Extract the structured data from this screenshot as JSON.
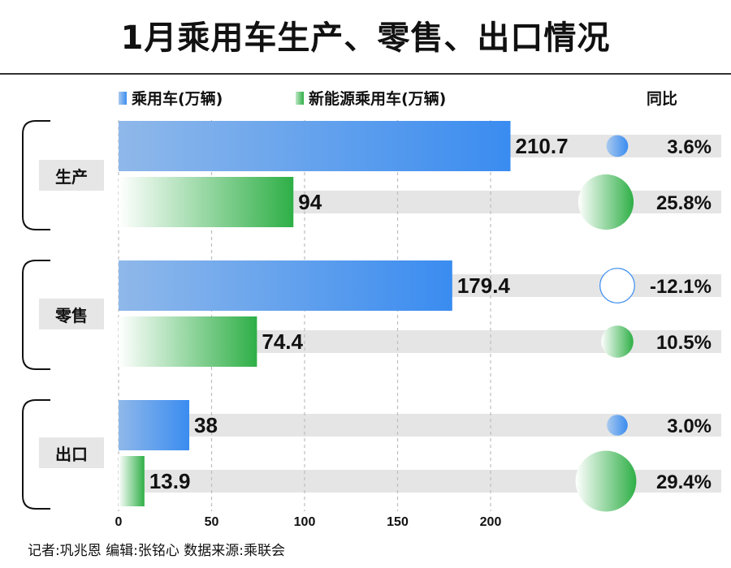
{
  "chart_data": {
    "type": "bar",
    "title": "1月乘用车生产、零售、出口情况",
    "orientation": "horizontal",
    "categories": [
      "生产",
      "零售",
      "出口"
    ],
    "series": [
      {
        "name": "乘用车(万辆)",
        "values": [
          210.7,
          179.4,
          38
        ],
        "yoy": [
          "3.6%",
          "-12.1%",
          "3.0%"
        ],
        "yoy_values": [
          3.6,
          -12.1,
          3.0
        ],
        "color": "#3d8ef0"
      },
      {
        "name": "新能源乘用车(万辆)",
        "values": [
          94,
          74.4,
          13.9
        ],
        "yoy": [
          "25.8%",
          "10.5%",
          "29.4%"
        ],
        "yoy_values": [
          25.8,
          10.5,
          29.4
        ],
        "color": "#2eaf46"
      }
    ],
    "yoy_label": "同比",
    "xlim": [
      0,
      215
    ],
    "xticks": [
      0,
      50,
      100,
      150,
      200
    ],
    "grid": true,
    "legend": "top"
  },
  "credit": "记者:巩兆恩   编辑:张铭心   数据来源:乘联会"
}
